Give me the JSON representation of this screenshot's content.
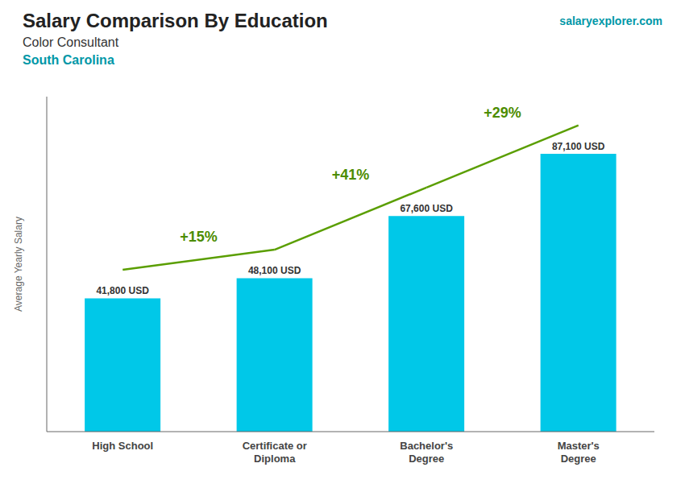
{
  "chart_data": {
    "type": "bar",
    "title": "Salary Comparison By Education",
    "subtitle": [
      "Color Consultant",
      "South Carolina"
    ],
    "ylabel": "Average Yearly Salary",
    "categories": [
      "High School",
      "Certificate or\nDiploma",
      "Bachelor's\nDegree",
      "Master's\nDegree"
    ],
    "values": [
      41800,
      48100,
      67600,
      87100
    ],
    "value_labels": [
      "41,800 USD",
      "48,100 USD",
      "67,600 USD",
      "87,100 USD"
    ],
    "data_labels": true,
    "color": "#00c8e8",
    "ylim": [
      0,
      105000
    ],
    "tick_labels": "x",
    "grid": false,
    "annotations": [
      {
        "text": "+15%",
        "from": "High School",
        "to": "Certificate or\nDiploma"
      },
      {
        "text": "+41%",
        "from": "Certificate or\nDiploma",
        "to": "Bachelor's\nDegree"
      },
      {
        "text": "+29%",
        "from": "Bachelor's\nDegree",
        "to": "Master's\nDegree"
      },
      {
        "text": "salaryexplorer.com"
      }
    ]
  }
}
